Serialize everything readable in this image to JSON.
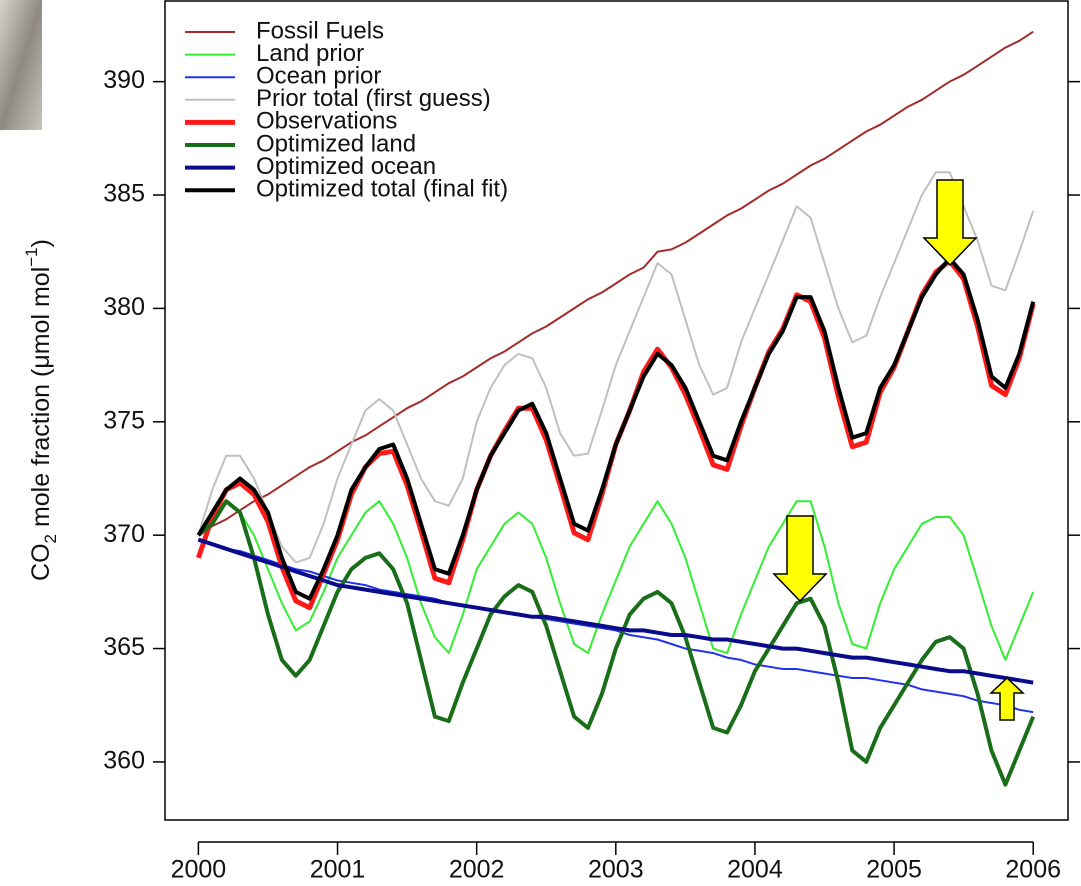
{
  "chart_data": {
    "type": "line",
    "ylabel_parts": [
      "CO",
      "2",
      " mole fraction (μmol mol",
      "−1",
      ")"
    ],
    "xlim": [
      1999.76,
      2006.25
    ],
    "ylim": [
      357.44,
      393.6
    ],
    "xticks": [
      2000,
      2001,
      2002,
      2003,
      2004,
      2005,
      2006
    ],
    "yticks": [
      360,
      365,
      370,
      375,
      380,
      385,
      390
    ],
    "legend": "top-left",
    "x": [
      2000,
      2000.1,
      2000.2,
      2000.3,
      2000.4,
      2000.5,
      2000.6,
      2000.7,
      2000.8,
      2000.9,
      2001,
      2001.1,
      2001.2,
      2001.3,
      2001.4,
      2001.5,
      2001.6,
      2001.7,
      2001.8,
      2001.9,
      2002,
      2002.1,
      2002.2,
      2002.3,
      2002.4,
      2002.5,
      2002.6,
      2002.7,
      2002.8,
      2002.9,
      2003,
      2003.1,
      2003.2,
      2003.3,
      2003.4,
      2003.5,
      2003.6,
      2003.7,
      2003.8,
      2003.9,
      2004,
      2004.1,
      2004.2,
      2004.3,
      2004.4,
      2004.5,
      2004.6,
      2004.7,
      2004.8,
      2004.9,
      2005,
      2005.1,
      2005.2,
      2005.3,
      2005.4,
      2005.5,
      2005.6,
      2005.7,
      2005.8,
      2005.9,
      2006
    ],
    "series": [
      {
        "name": "Fossil Fuels",
        "color": "#a52a2a",
        "width": 2,
        "values": [
          370.0,
          370.4,
          370.7,
          371.1,
          371.5,
          371.8,
          372.2,
          372.6,
          373.0,
          373.3,
          373.7,
          374.1,
          374.4,
          374.8,
          375.2,
          375.6,
          375.9,
          376.3,
          376.7,
          377.0,
          377.4,
          377.8,
          378.1,
          378.5,
          378.9,
          379.2,
          379.6,
          380.0,
          380.4,
          380.7,
          381.1,
          381.5,
          381.8,
          382.5,
          382.6,
          382.9,
          383.3,
          383.7,
          384.1,
          384.4,
          384.8,
          385.2,
          385.5,
          385.9,
          386.3,
          386.6,
          387.0,
          387.4,
          387.8,
          388.1,
          388.5,
          388.9,
          389.2,
          389.6,
          390.0,
          390.3,
          390.7,
          391.1,
          391.5,
          391.8,
          392.2
        ]
      },
      {
        "name": "Land prior",
        "color": "#33ee33",
        "width": 2,
        "values": [
          370,
          371,
          371.5,
          371,
          370,
          368.5,
          367,
          365.8,
          366.2,
          367.5,
          369,
          370,
          371,
          371.5,
          370.5,
          369,
          367,
          365.5,
          364.8,
          366.5,
          368.5,
          369.5,
          370.5,
          371,
          370.5,
          369,
          367,
          365.2,
          364.8,
          366.5,
          368,
          369.5,
          370.5,
          371.5,
          370.5,
          369,
          367,
          365,
          364.8,
          366.5,
          368,
          369.5,
          370.5,
          371.5,
          371.5,
          369.5,
          367,
          365.2,
          365,
          367,
          368.5,
          369.5,
          370.5,
          370.8,
          370.8,
          370,
          368,
          366,
          364.5,
          366,
          367.5
        ]
      },
      {
        "name": "Ocean prior",
        "color": "#2233ee",
        "width": 2,
        "values": [
          369.8,
          369.6,
          369.4,
          369.3,
          369.1,
          368.9,
          368.7,
          368.5,
          368.4,
          368.2,
          368.0,
          367.9,
          367.8,
          367.6,
          367.5,
          367.4,
          367.3,
          367.2,
          367.0,
          366.9,
          366.8,
          366.7,
          366.6,
          366.5,
          366.4,
          366.3,
          366.2,
          366.1,
          366.0,
          365.9,
          365.8,
          365.6,
          365.5,
          365.4,
          365.2,
          365.0,
          364.9,
          364.8,
          364.6,
          364.5,
          364.3,
          364.2,
          364.1,
          364.1,
          364.0,
          363.9,
          363.8,
          363.7,
          363.7,
          363.6,
          363.5,
          363.4,
          363.2,
          363.1,
          363.0,
          362.9,
          362.7,
          362.6,
          362.5,
          362.3,
          362.2
        ]
      },
      {
        "name": "Prior total (first guess)",
        "color": "#c0c0c0",
        "width": 2,
        "values": [
          370,
          372,
          373.5,
          373.5,
          372.5,
          371,
          369.5,
          368.8,
          369,
          370.5,
          372.5,
          374,
          375.5,
          376,
          375.5,
          374,
          372.5,
          371.5,
          371.3,
          372.5,
          375,
          376.5,
          377.5,
          378,
          377.8,
          376.5,
          374.5,
          373.5,
          373.6,
          375.5,
          377.5,
          379,
          380.5,
          382,
          381.5,
          379.5,
          377.5,
          376.2,
          376.5,
          378.5,
          380,
          381.5,
          383,
          384.5,
          384,
          382,
          380,
          378.5,
          378.8,
          380.5,
          382,
          383.5,
          385,
          386,
          386,
          384.5,
          383,
          381,
          380.8,
          382.5,
          384.3
        ]
      },
      {
        "name": "Observations",
        "color": "#ff1a1a",
        "width": 5,
        "values": [
          369,
          370.8,
          372,
          372.3,
          371.8,
          370.6,
          368.6,
          367.1,
          366.8,
          368.3,
          369.8,
          371.8,
          373,
          373.6,
          373.7,
          372.2,
          370.2,
          368.1,
          367.9,
          369.8,
          372,
          373.5,
          374.6,
          375.6,
          375.6,
          374.2,
          372.2,
          370.1,
          369.8,
          371.8,
          374,
          375.5,
          377.2,
          378.2,
          377.4,
          376.2,
          374.7,
          373.1,
          372.9,
          374.8,
          376.5,
          378.1,
          379.1,
          380.6,
          380.3,
          378.7,
          376.1,
          373.9,
          374.1,
          376.3,
          377.4,
          379,
          380.6,
          381.6,
          382.1,
          381.3,
          379.2,
          376.6,
          376.2,
          377.8,
          380.2
        ]
      },
      {
        "name": "Optimized land",
        "color": "#1a6e1a",
        "width": 4,
        "values": [
          370,
          370.5,
          371.5,
          371,
          369,
          366.5,
          364.5,
          363.8,
          364.5,
          366,
          367.5,
          368.5,
          369,
          369.2,
          368.5,
          367,
          364.5,
          362,
          361.8,
          363.5,
          365,
          366.5,
          367.3,
          367.8,
          367.5,
          366,
          364,
          362,
          361.5,
          363,
          365,
          366.5,
          367.2,
          367.5,
          367,
          365.5,
          363.5,
          361.5,
          361.3,
          362.5,
          364,
          365,
          366,
          367,
          367.2,
          366,
          363.5,
          360.5,
          360,
          361.5,
          362.5,
          363.5,
          364.5,
          365.3,
          365.5,
          365,
          363,
          360.5,
          359,
          360.5,
          362
        ]
      },
      {
        "name": "Optimized ocean",
        "color": "#0a0a8c",
        "width": 4,
        "values": [
          369.8,
          369.6,
          369.4,
          369.2,
          369.0,
          368.8,
          368.6,
          368.4,
          368.2,
          368.0,
          367.8,
          367.7,
          367.6,
          367.5,
          367.4,
          367.3,
          367.2,
          367.1,
          367.0,
          366.9,
          366.8,
          366.7,
          366.6,
          366.5,
          366.4,
          366.4,
          366.3,
          366.2,
          366.1,
          366.0,
          365.9,
          365.8,
          365.8,
          365.7,
          365.6,
          365.6,
          365.5,
          365.4,
          365.4,
          365.3,
          365.2,
          365.1,
          365.0,
          365.0,
          364.9,
          364.8,
          364.7,
          364.6,
          364.6,
          364.5,
          364.4,
          364.3,
          364.2,
          364.1,
          364.0,
          364.0,
          363.9,
          363.8,
          363.7,
          363.6,
          363.5
        ]
      },
      {
        "name": "Optimized total (final fit)",
        "color": "#000000",
        "width": 4,
        "values": [
          370,
          371,
          372,
          372.5,
          372,
          371,
          369,
          367.5,
          367.2,
          368.5,
          370,
          372,
          373,
          373.8,
          374,
          372.5,
          370.5,
          368.5,
          368.3,
          370,
          372,
          373.5,
          374.5,
          375.5,
          375.8,
          374.5,
          372.5,
          370.5,
          370.2,
          372,
          374,
          375.5,
          377,
          378,
          377.5,
          376.5,
          375,
          373.5,
          373.3,
          375,
          376.5,
          378,
          379,
          380.5,
          380.5,
          379,
          376.5,
          374.3,
          374.5,
          376.5,
          377.5,
          379,
          380.5,
          381.5,
          382.2,
          381.5,
          379.5,
          377,
          376.5,
          378,
          380.3
        ]
      }
    ]
  }
}
